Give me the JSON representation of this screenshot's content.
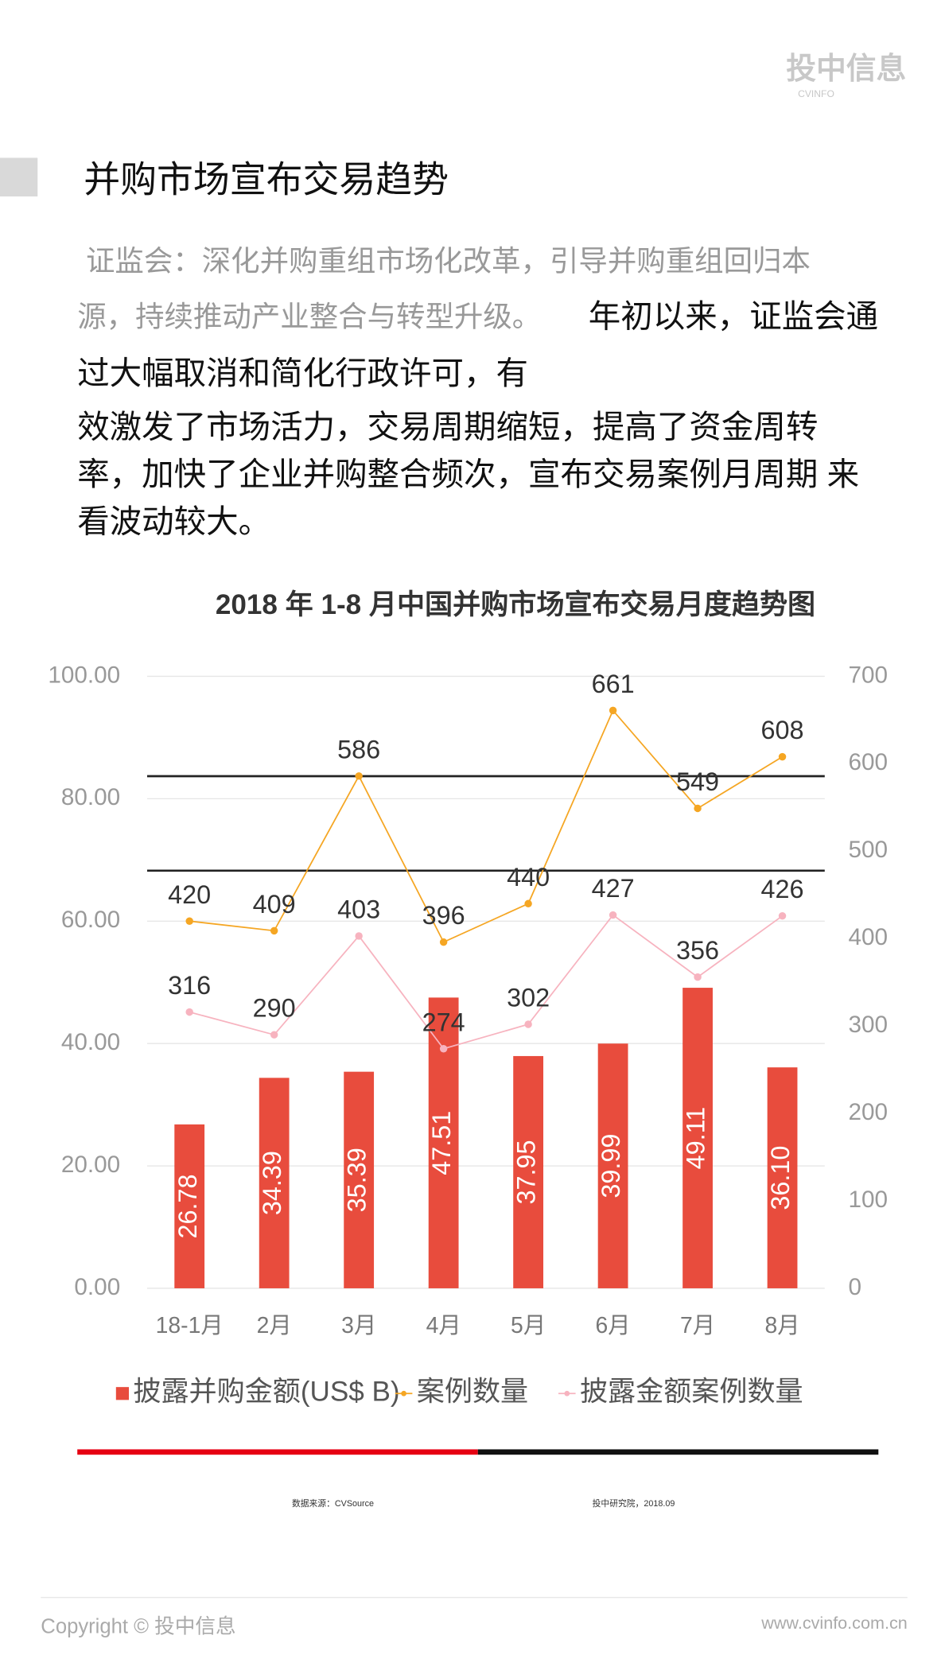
{
  "header": {
    "logo": "投中信息",
    "logo_sub": "CVINFO"
  },
  "title": "并购市场宣布交易趋势",
  "paragraph": {
    "lead": [
      "证监会：深化并购重组市场化改革，引导并购重组回归本",
      "源，持续推动产业整合与转型升级。"
    ],
    "body": [
      "年初以来，证监会通",
      "过大幅取消和简化行政许可，有",
      "效激发了市场活力，交易周期缩短，提高了资金周转",
      "率，加快了企业并购整合频次，宣布交易案例月周期 来",
      "看波动较大。"
    ]
  },
  "chart_data": {
    "type": "bar",
    "title": "2018 年 1-8 月中国并购市场宣布交易月度趋势图",
    "categories": [
      "18-1月",
      "2月",
      "3月",
      "4月",
      "5月",
      "6月",
      "7月",
      "8月"
    ],
    "series": [
      {
        "name": "披露并购金额(US$ B)",
        "type": "bar",
        "color": "#e84c3d",
        "values": [
          26.78,
          34.39,
          35.39,
          47.51,
          37.95,
          39.99,
          49.11,
          36.1
        ],
        "value_labels": [
          "26.78",
          "34.39",
          "35.39",
          "47.51",
          "37.95",
          "39.99",
          "49.11",
          "36.10"
        ]
      },
      {
        "name": "案例数量",
        "type": "line",
        "axis": "y2",
        "color": "#f5a623",
        "values": [
          420,
          409,
          586,
          396,
          440,
          661,
          549,
          608
        ]
      },
      {
        "name": "披露金额案例数量",
        "type": "line",
        "axis": "y2",
        "color": "#f7b3bf",
        "values": [
          316,
          290,
          403,
          274,
          302,
          427,
          356,
          426
        ]
      }
    ],
    "ylim": [
      0,
      100
    ],
    "yticks": [
      {
        "value": 0,
        "label": "0.00"
      },
      {
        "value": 20,
        "label": "20.00"
      },
      {
        "value": 40,
        "label": "40.00"
      },
      {
        "value": 60,
        "label": "60.00"
      },
      {
        "value": 80,
        "label": "80.00"
      },
      {
        "value": 100,
        "label": "100.00"
      }
    ],
    "y2lim": [
      0,
      700
    ],
    "y2ticks": [
      0,
      100,
      200,
      300,
      400,
      500,
      600,
      700
    ],
    "grid": true
  },
  "source": "数据来源：CVSource",
  "credit": "投中研究院，2018.09",
  "footer": {
    "copyright": "Copyright © 投中信息",
    "url": "www.cvinfo.com.cn"
  }
}
